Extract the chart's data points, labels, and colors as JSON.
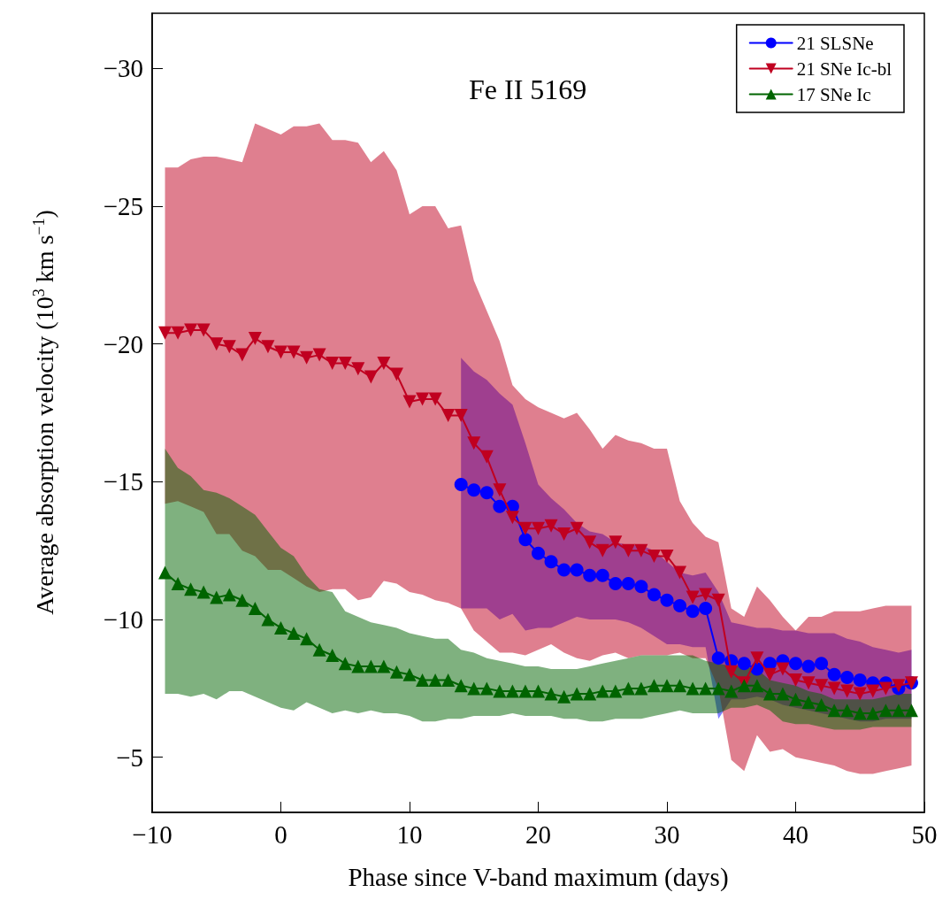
{
  "chart_data": {
    "type": "line",
    "title": "Fe II 5169",
    "xlabel": "Phase since V-band maximum (days)",
    "ylabel": "Average absorption velocity (10$^{3}$ km s$^{−1}$)",
    "xlim": [
      -10,
      50
    ],
    "xticks": [
      -10,
      0,
      10,
      20,
      30,
      40,
      50
    ],
    "ylim": [
      -3,
      -32
    ],
    "yticks": [
      -30,
      -25,
      -20,
      -15,
      -10,
      -5
    ],
    "legend": "top right",
    "line_style": "solid",
    "series": [
      {
        "name": "21 SLSNe",
        "color": "#0000ff",
        "marker": "circle",
        "x": [
          14,
          15,
          16,
          17,
          18,
          19,
          20,
          21,
          22,
          23,
          24,
          25,
          26,
          27,
          28,
          29,
          30,
          31,
          32,
          33,
          34,
          35,
          36,
          37,
          38,
          39,
          40,
          41,
          42,
          43,
          44,
          45,
          46,
          47,
          48,
          49
        ],
        "values": [
          -14.9,
          -14.7,
          -14.6,
          -14.1,
          -14.1,
          -12.9,
          -12.4,
          -12.1,
          -11.8,
          -11.8,
          -11.6,
          -11.6,
          -11.3,
          -11.3,
          -11.2,
          -10.9,
          -10.7,
          -10.5,
          -10.3,
          -10.4,
          -8.6,
          -8.5,
          -8.4,
          -8.2,
          -8.4,
          -8.5,
          -8.4,
          -8.3,
          -8.4,
          -8.0,
          -7.9,
          -7.8,
          -7.7,
          -7.7,
          -7.5,
          -7.7
        ],
        "lower": [
          -19.5,
          -19.0,
          -18.7,
          -18.2,
          -17.8,
          -16.4,
          -14.9,
          -14.4,
          -14.0,
          -13.5,
          -13.2,
          -13.1,
          -12.8,
          -12.7,
          -12.7,
          -12.5,
          -12.1,
          -11.7,
          -11.6,
          -11.7,
          -11.0,
          -9.9,
          -9.8,
          -9.7,
          -9.7,
          -9.6,
          -9.6,
          -9.5,
          -9.5,
          -9.5,
          -9.3,
          -9.2,
          -9.0,
          -8.9,
          -8.8,
          -8.9
        ],
        "upper": [
          -10.4,
          -10.4,
          -10.4,
          -10.0,
          -10.2,
          -9.6,
          -9.7,
          -9.7,
          -9.9,
          -10.1,
          -10.0,
          -10.0,
          -10.0,
          -9.9,
          -9.7,
          -9.4,
          -9.1,
          -9.1,
          -9.0,
          -9.0,
          -6.4,
          -7.1,
          -7.1,
          -7.2,
          -7.1,
          -6.9,
          -6.8,
          -6.7,
          -6.6,
          -6.5,
          -6.4,
          -6.3,
          -6.3,
          -6.4,
          -6.4,
          -6.4
        ]
      },
      {
        "name": "21 SNe Ic-bl",
        "color": "#c00020",
        "marker": "triangle-down",
        "x": [
          -9,
          -8,
          -7,
          -6,
          -5,
          -4,
          -3,
          -2,
          -1,
          0,
          1,
          2,
          3,
          4,
          5,
          6,
          7,
          8,
          9,
          10,
          11,
          12,
          13,
          14,
          15,
          16,
          17,
          18,
          19,
          20,
          21,
          22,
          23,
          24,
          25,
          26,
          27,
          28,
          29,
          30,
          31,
          32,
          33,
          34,
          35,
          36,
          37,
          38,
          39,
          40,
          41,
          42,
          43,
          44,
          45,
          46,
          47,
          48,
          49
        ],
        "values": [
          -20.4,
          -20.4,
          -20.5,
          -20.5,
          -20.0,
          -19.9,
          -19.6,
          -20.2,
          -19.9,
          -19.7,
          -19.7,
          -19.5,
          -19.6,
          -19.3,
          -19.3,
          -19.1,
          -18.8,
          -19.3,
          -18.9,
          -17.9,
          -18.0,
          -18.0,
          -17.4,
          -17.4,
          -16.4,
          -15.9,
          -14.7,
          -13.7,
          -13.3,
          -13.3,
          -13.4,
          -13.1,
          -13.3,
          -12.8,
          -12.5,
          -12.8,
          -12.5,
          -12.5,
          -12.3,
          -12.3,
          -11.7,
          -10.8,
          -10.9,
          -10.7,
          -8.1,
          -7.7,
          -8.6,
          -8.0,
          -8.2,
          -7.8,
          -7.7,
          -7.6,
          -7.5,
          -7.4,
          -7.3,
          -7.4,
          -7.5,
          -7.6,
          -7.7
        ],
        "lower": [
          -26.4,
          -26.4,
          -26.7,
          -26.8,
          -26.8,
          -26.7,
          -26.6,
          -28.0,
          -27.8,
          -27.6,
          -27.9,
          -27.9,
          -28.0,
          -27.4,
          -27.4,
          -27.3,
          -26.6,
          -27.0,
          -26.3,
          -24.7,
          -25.0,
          -25.0,
          -24.2,
          -24.3,
          -22.3,
          -21.2,
          -20.1,
          -18.5,
          -18.0,
          -17.7,
          -17.5,
          -17.3,
          -17.5,
          -16.9,
          -16.2,
          -16.7,
          -16.5,
          -16.4,
          -16.2,
          -16.2,
          -14.3,
          -13.5,
          -13.0,
          -12.8,
          -10.4,
          -10.1,
          -11.2,
          -10.7,
          -10.1,
          -9.6,
          -10.1,
          -10.1,
          -10.3,
          -10.3,
          -10.3,
          -10.4,
          -10.5,
          -10.5,
          -10.5
        ],
        "upper": [
          -14.2,
          -14.3,
          -14.1,
          -13.9,
          -13.1,
          -13.1,
          -12.5,
          -12.3,
          -11.8,
          -11.8,
          -11.5,
          -11.2,
          -11.0,
          -11.1,
          -11.1,
          -10.7,
          -10.8,
          -11.4,
          -11.3,
          -11.0,
          -10.9,
          -10.7,
          -10.6,
          -10.4,
          -9.6,
          -9.2,
          -8.8,
          -8.8,
          -8.7,
          -8.9,
          -9.1,
          -8.8,
          -8.6,
          -8.5,
          -8.7,
          -8.8,
          -8.6,
          -8.7,
          -8.7,
          -8.7,
          -8.8,
          -8.6,
          -8.6,
          -7.5,
          -4.9,
          -4.5,
          -5.8,
          -5.2,
          -5.3,
          -5.0,
          -4.9,
          -4.8,
          -4.7,
          -4.5,
          -4.4,
          -4.4,
          -4.5,
          -4.6,
          -4.7
        ]
      },
      {
        "name": "17 SNe Ic",
        "color": "#006400",
        "marker": "triangle",
        "x": [
          -9,
          -8,
          -7,
          -6,
          -5,
          -4,
          -3,
          -2,
          -1,
          0,
          1,
          2,
          3,
          4,
          5,
          6,
          7,
          8,
          9,
          10,
          11,
          12,
          13,
          14,
          15,
          16,
          17,
          18,
          19,
          20,
          21,
          22,
          23,
          24,
          25,
          26,
          27,
          28,
          29,
          30,
          31,
          32,
          33,
          34,
          35,
          36,
          37,
          38,
          39,
          40,
          41,
          42,
          43,
          44,
          45,
          46,
          47,
          48,
          49
        ],
        "values": [
          -11.7,
          -11.3,
          -11.1,
          -11.0,
          -10.8,
          -10.9,
          -10.7,
          -10.4,
          -10.0,
          -9.7,
          -9.5,
          -9.3,
          -8.9,
          -8.7,
          -8.4,
          -8.3,
          -8.3,
          -8.3,
          -8.1,
          -8.0,
          -7.8,
          -7.8,
          -7.8,
          -7.6,
          -7.5,
          -7.5,
          -7.4,
          -7.4,
          -7.4,
          -7.4,
          -7.3,
          -7.2,
          -7.3,
          -7.3,
          -7.4,
          -7.4,
          -7.5,
          -7.5,
          -7.6,
          -7.6,
          -7.6,
          -7.5,
          -7.5,
          -7.5,
          -7.4,
          -7.6,
          -7.6,
          -7.3,
          -7.3,
          -7.1,
          -7.0,
          -6.9,
          -6.7,
          -6.7,
          -6.6,
          -6.6,
          -6.7,
          -6.7,
          -6.7
        ],
        "lower": [
          -16.2,
          -15.5,
          -15.2,
          -14.7,
          -14.6,
          -14.4,
          -14.1,
          -13.8,
          -13.2,
          -12.6,
          -12.3,
          -11.6,
          -11.1,
          -11.0,
          -10.3,
          -10.1,
          -9.9,
          -9.8,
          -9.7,
          -9.5,
          -9.4,
          -9.3,
          -9.3,
          -8.9,
          -8.8,
          -8.6,
          -8.5,
          -8.4,
          -8.3,
          -8.3,
          -8.2,
          -8.2,
          -8.2,
          -8.3,
          -8.4,
          -8.5,
          -8.6,
          -8.7,
          -8.7,
          -8.7,
          -8.7,
          -8.7,
          -8.5,
          -8.4,
          -8.3,
          -8.3,
          -8.2,
          -7.8,
          -7.7,
          -7.6,
          -7.4,
          -7.3,
          -7.1,
          -7.1,
          -7.1,
          -7.1,
          -7.2,
          -7.3,
          -7.3
        ],
        "upper": [
          -7.3,
          -7.3,
          -7.2,
          -7.3,
          -7.1,
          -7.4,
          -7.4,
          -7.2,
          -7.0,
          -6.8,
          -6.7,
          -7.0,
          -6.8,
          -6.6,
          -6.7,
          -6.6,
          -6.7,
          -6.6,
          -6.6,
          -6.5,
          -6.3,
          -6.3,
          -6.4,
          -6.4,
          -6.5,
          -6.5,
          -6.5,
          -6.6,
          -6.5,
          -6.5,
          -6.5,
          -6.4,
          -6.4,
          -6.3,
          -6.3,
          -6.4,
          -6.4,
          -6.4,
          -6.5,
          -6.6,
          -6.7,
          -6.6,
          -6.6,
          -6.6,
          -6.8,
          -6.8,
          -6.9,
          -6.7,
          -6.3,
          -6.2,
          -6.2,
          -6.1,
          -6.0,
          -6.0,
          -6.0,
          -6.1,
          -6.1,
          -6.1,
          -6.1
        ]
      }
    ]
  }
}
